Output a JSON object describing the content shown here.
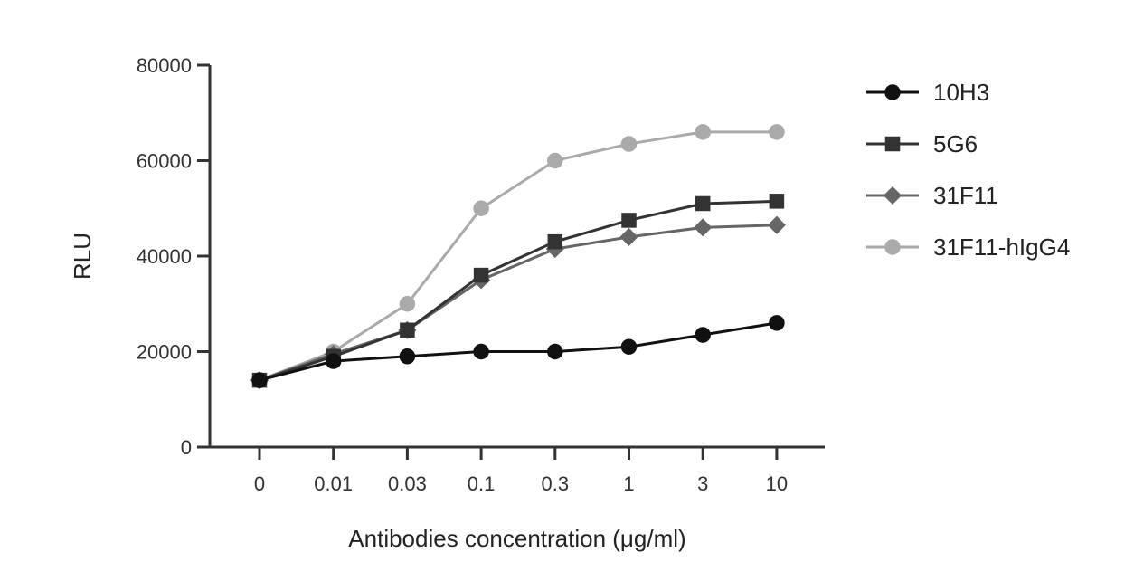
{
  "chart_data": {
    "type": "line",
    "categories": [
      "0",
      "0.01",
      "0.03",
      "0.1",
      "0.3",
      "1",
      "3",
      "10"
    ],
    "series": [
      {
        "name": "10H3",
        "values": [
          14000,
          18000,
          19000,
          20000,
          20000,
          21000,
          23500,
          26000
        ],
        "color": "#111111",
        "marker": "circle"
      },
      {
        "name": "5G6",
        "values": [
          14000,
          19000,
          24500,
          36000,
          43000,
          47500,
          51000,
          51500
        ],
        "color": "#333333",
        "marker": "square"
      },
      {
        "name": "31F11",
        "values": [
          14000,
          19500,
          24500,
          35000,
          41500,
          44000,
          46000,
          46500
        ],
        "color": "#666666",
        "marker": "diamond"
      },
      {
        "name": "31F11-hIgG4",
        "values": [
          14000,
          20000,
          30000,
          50000,
          60000,
          63500,
          66000,
          66000
        ],
        "color": "#aaaaaa",
        "marker": "circle"
      }
    ],
    "yticks": [
      "0",
      "20000",
      "40000",
      "60000",
      "80000"
    ],
    "xlabel": "Antibodies concentration (μg/ml)",
    "ylabel": "RLU",
    "ylim": [
      0,
      80000
    ],
    "grid": false,
    "legend": "right"
  }
}
